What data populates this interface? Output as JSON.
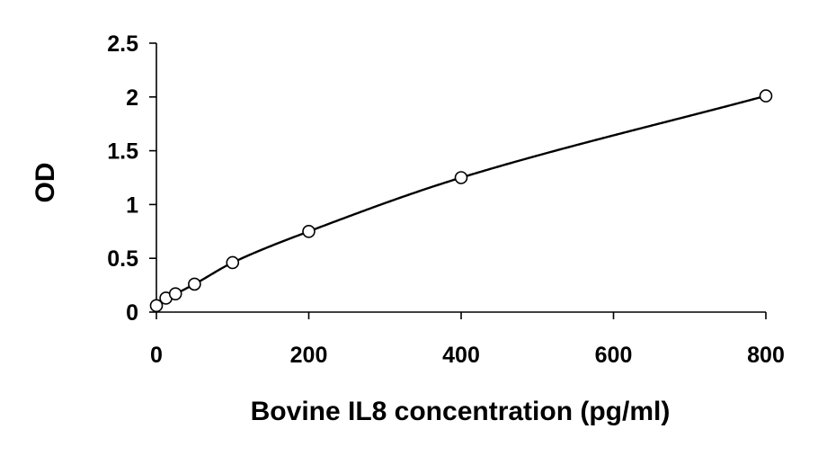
{
  "chart_data": {
    "type": "scatter",
    "title": "",
    "xlabel": "Bovine IL8 concentration (pg/ml)",
    "ylabel": "OD",
    "xlim": [
      0,
      800
    ],
    "ylim": [
      0,
      2.5
    ],
    "x_ticks": [
      "0",
      "200",
      "400",
      "600",
      "800"
    ],
    "y_ticks": [
      "0",
      "0.5",
      "1",
      "1.5",
      "2",
      "2.5"
    ],
    "grid": false,
    "legend": "none",
    "series": [
      {
        "marker": "open-circle",
        "trendline": "smooth-curve",
        "points": [
          {
            "x": 0,
            "y": 0.06
          },
          {
            "x": 12.5,
            "y": 0.13
          },
          {
            "x": 25,
            "y": 0.17
          },
          {
            "x": 50,
            "y": 0.26
          },
          {
            "x": 100,
            "y": 0.46
          },
          {
            "x": 200,
            "y": 0.75
          },
          {
            "x": 400,
            "y": 1.25
          },
          {
            "x": 800,
            "y": 2.01
          }
        ]
      }
    ],
    "colors": {
      "axis": "#000000",
      "curve": "#000000",
      "marker_stroke": "#000000",
      "marker_fill": "#ffffff"
    }
  }
}
